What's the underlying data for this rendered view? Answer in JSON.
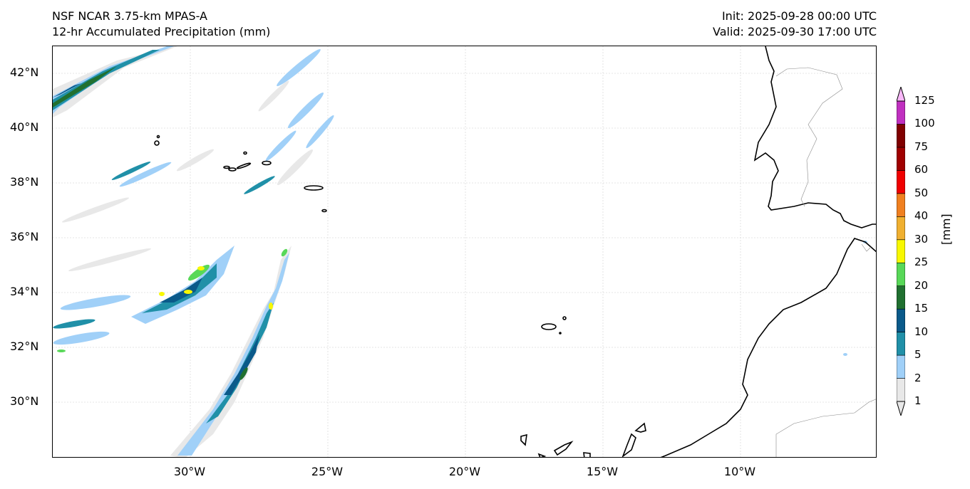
{
  "header": {
    "model": "NSF NCAR 3.75-km MPAS-A",
    "field": "12-hr Accumulated Precipitation (mm)",
    "init": "Init: 2025-09-28 00:00 UTC",
    "valid": "Valid: 2025-09-30 17:00 UTC"
  },
  "axes": {
    "lat_labels": [
      "42°N",
      "40°N",
      "38°N",
      "36°N",
      "34°N",
      "32°N",
      "30°N"
    ],
    "lon_labels": [
      "30°W",
      "25°W",
      "20°W",
      "15°W",
      "10°W"
    ]
  },
  "colorbar": {
    "units": "[mm]",
    "levels": [
      "1",
      "2",
      "5",
      "10",
      "15",
      "20",
      "25",
      "30",
      "40",
      "50",
      "60",
      "75",
      "100",
      "125"
    ],
    "colors": [
      "#e8e8e8",
      "#a0d0f8",
      "#2090a8",
      "#0a5a8a",
      "#207030",
      "#58d858",
      "#f8f800",
      "#f0b030",
      "#f08020",
      "#f00000",
      "#a00000",
      "#800000",
      "#c030c0",
      "#f8b8f8"
    ]
  }
}
